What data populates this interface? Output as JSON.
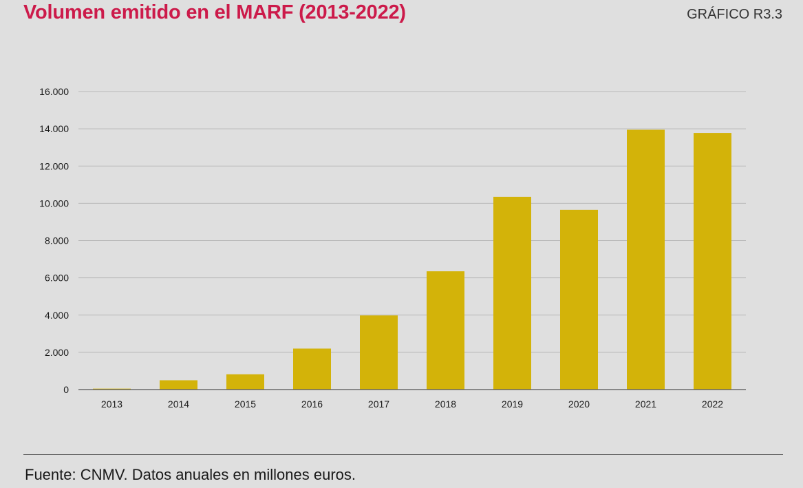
{
  "header": {
    "title": "Volumen emitido en el MARF (2013-2022)",
    "figure_label": "GRÁFICO R3.3"
  },
  "footer": {
    "source": "Fuente: CNMV. Datos anuales en millones euros."
  },
  "colors": {
    "title": "#cc1a4a",
    "bar": "#d3b309",
    "grid": "#b8b8b8",
    "axis": "#555555",
    "background": "#dfdfdf"
  },
  "chart_data": {
    "type": "bar",
    "title": "",
    "xlabel": "",
    "ylabel": "",
    "categories": [
      "2013",
      "2014",
      "2015",
      "2016",
      "2017",
      "2018",
      "2019",
      "2020",
      "2021",
      "2022"
    ],
    "values": [
      50,
      500,
      820,
      2200,
      3980,
      6350,
      10350,
      9650,
      13950,
      13780
    ],
    "ylim": [
      0,
      16000
    ],
    "yticks": [
      0,
      2000,
      4000,
      6000,
      8000,
      10000,
      12000,
      14000,
      16000
    ],
    "ytick_labels": [
      "0",
      "2.000",
      "4.000",
      "6.000",
      "8.000",
      "10.000",
      "12.000",
      "14.000",
      "16.000"
    ],
    "grid": true,
    "legend": "none"
  }
}
